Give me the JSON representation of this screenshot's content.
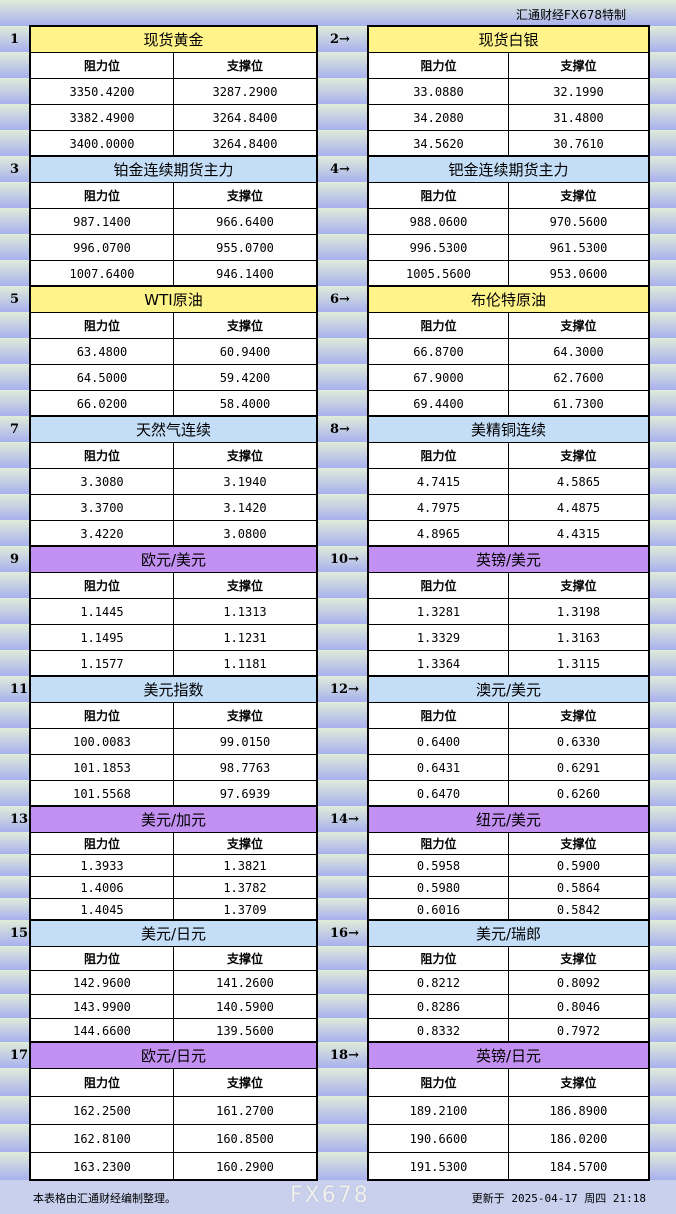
{
  "brand": "汇通财经FX678特制",
  "labels": {
    "resistance": "阻力位",
    "support": "支撑位"
  },
  "colors": {
    "gold": "#fff38a",
    "blue": "#c4def8",
    "purple": "#c290f0"
  },
  "sections": [
    {
      "num": "1",
      "title": "现货黄金",
      "color": "gold",
      "rows": [
        [
          "3350.4200",
          "3287.2900"
        ],
        [
          "3382.4900",
          "3264.8400"
        ],
        [
          "3400.0000",
          "3264.8400"
        ]
      ]
    },
    {
      "num": "2→",
      "title": "现货白银",
      "color": "gold",
      "rows": [
        [
          "33.0880",
          "32.1990"
        ],
        [
          "34.2080",
          "31.4800"
        ],
        [
          "34.5620",
          "30.7610"
        ]
      ]
    },
    {
      "num": "3",
      "title": "铂金连续期货主力",
      "color": "blue",
      "rows": [
        [
          "987.1400",
          "966.6400"
        ],
        [
          "996.0700",
          "955.0700"
        ],
        [
          "1007.6400",
          "946.1400"
        ]
      ]
    },
    {
      "num": "4→",
      "title": "钯金连续期货主力",
      "color": "blue",
      "rows": [
        [
          "988.0600",
          "970.5600"
        ],
        [
          "996.5300",
          "961.5300"
        ],
        [
          "1005.5600",
          "953.0600"
        ]
      ]
    },
    {
      "num": "5",
      "title": "WTI原油",
      "color": "gold",
      "rows": [
        [
          "63.4800",
          "60.9400"
        ],
        [
          "64.5000",
          "59.4200"
        ],
        [
          "66.0200",
          "58.4000"
        ]
      ]
    },
    {
      "num": "6→",
      "title": "布伦特原油",
      "color": "gold",
      "rows": [
        [
          "66.8700",
          "64.3000"
        ],
        [
          "67.9000",
          "62.7600"
        ],
        [
          "69.4400",
          "61.7300"
        ]
      ]
    },
    {
      "num": "7",
      "title": "天然气连续",
      "color": "blue",
      "rows": [
        [
          "3.3080",
          "3.1940"
        ],
        [
          "3.3700",
          "3.1420"
        ],
        [
          "3.4220",
          "3.0800"
        ]
      ]
    },
    {
      "num": "8→",
      "title": "美精铜连续",
      "color": "blue",
      "rows": [
        [
          "4.7415",
          "4.5865"
        ],
        [
          "4.7975",
          "4.4875"
        ],
        [
          "4.8965",
          "4.4315"
        ]
      ]
    },
    {
      "num": "9",
      "title": "欧元/美元",
      "color": "purple",
      "rows": [
        [
          "1.1445",
          "1.1313"
        ],
        [
          "1.1495",
          "1.1231"
        ],
        [
          "1.1577",
          "1.1181"
        ]
      ]
    },
    {
      "num": "10→",
      "title": "英镑/美元",
      "color": "purple",
      "rows": [
        [
          "1.3281",
          "1.3198"
        ],
        [
          "1.3329",
          "1.3163"
        ],
        [
          "1.3364",
          "1.3115"
        ]
      ]
    },
    {
      "num": "11",
      "title": "美元指数",
      "color": "blue",
      "rows": [
        [
          "100.0083",
          "99.0150"
        ],
        [
          "101.1853",
          "98.7763"
        ],
        [
          "101.5568",
          "97.6939"
        ]
      ]
    },
    {
      "num": "12→",
      "title": "澳元/美元",
      "color": "blue",
      "rows": [
        [
          "0.6400",
          "0.6330"
        ],
        [
          "0.6431",
          "0.6291"
        ],
        [
          "0.6470",
          "0.6260"
        ]
      ]
    },
    {
      "num": "13",
      "title": "美元/加元",
      "color": "purple",
      "rows": [
        [
          "1.3933",
          "1.3821"
        ],
        [
          "1.4006",
          "1.3782"
        ],
        [
          "1.4045",
          "1.3709"
        ]
      ]
    },
    {
      "num": "14→",
      "title": "纽元/美元",
      "color": "purple",
      "rows": [
        [
          "0.5958",
          "0.5900"
        ],
        [
          "0.5980",
          "0.5864"
        ],
        [
          "0.6016",
          "0.5842"
        ]
      ]
    },
    {
      "num": "15",
      "title": "美元/日元",
      "color": "blue",
      "rows": [
        [
          "142.9600",
          "141.2600"
        ],
        [
          "143.9900",
          "140.5900"
        ],
        [
          "144.6600",
          "139.5600"
        ]
      ]
    },
    {
      "num": "16→",
      "title": "美元/瑞郎",
      "color": "blue",
      "rows": [
        [
          "0.8212",
          "0.8092"
        ],
        [
          "0.8286",
          "0.8046"
        ],
        [
          "0.8332",
          "0.7972"
        ]
      ]
    },
    {
      "num": "17",
      "title": "欧元/日元",
      "color": "purple",
      "rows": [
        [
          "162.2500",
          "161.2700"
        ],
        [
          "162.8100",
          "160.8500"
        ],
        [
          "163.2300",
          "160.2900"
        ]
      ]
    },
    {
      "num": "18→",
      "title": "英镑/日元",
      "color": "purple",
      "rows": [
        [
          "189.2100",
          "186.8900"
        ],
        [
          "190.6600",
          "186.0200"
        ],
        [
          "191.5300",
          "184.5700"
        ]
      ]
    }
  ],
  "footer": {
    "note": "本表格由汇通财经编制整理。",
    "updated": "更新于 2025-04-17 周四 21:18"
  },
  "watermark": "FX678"
}
